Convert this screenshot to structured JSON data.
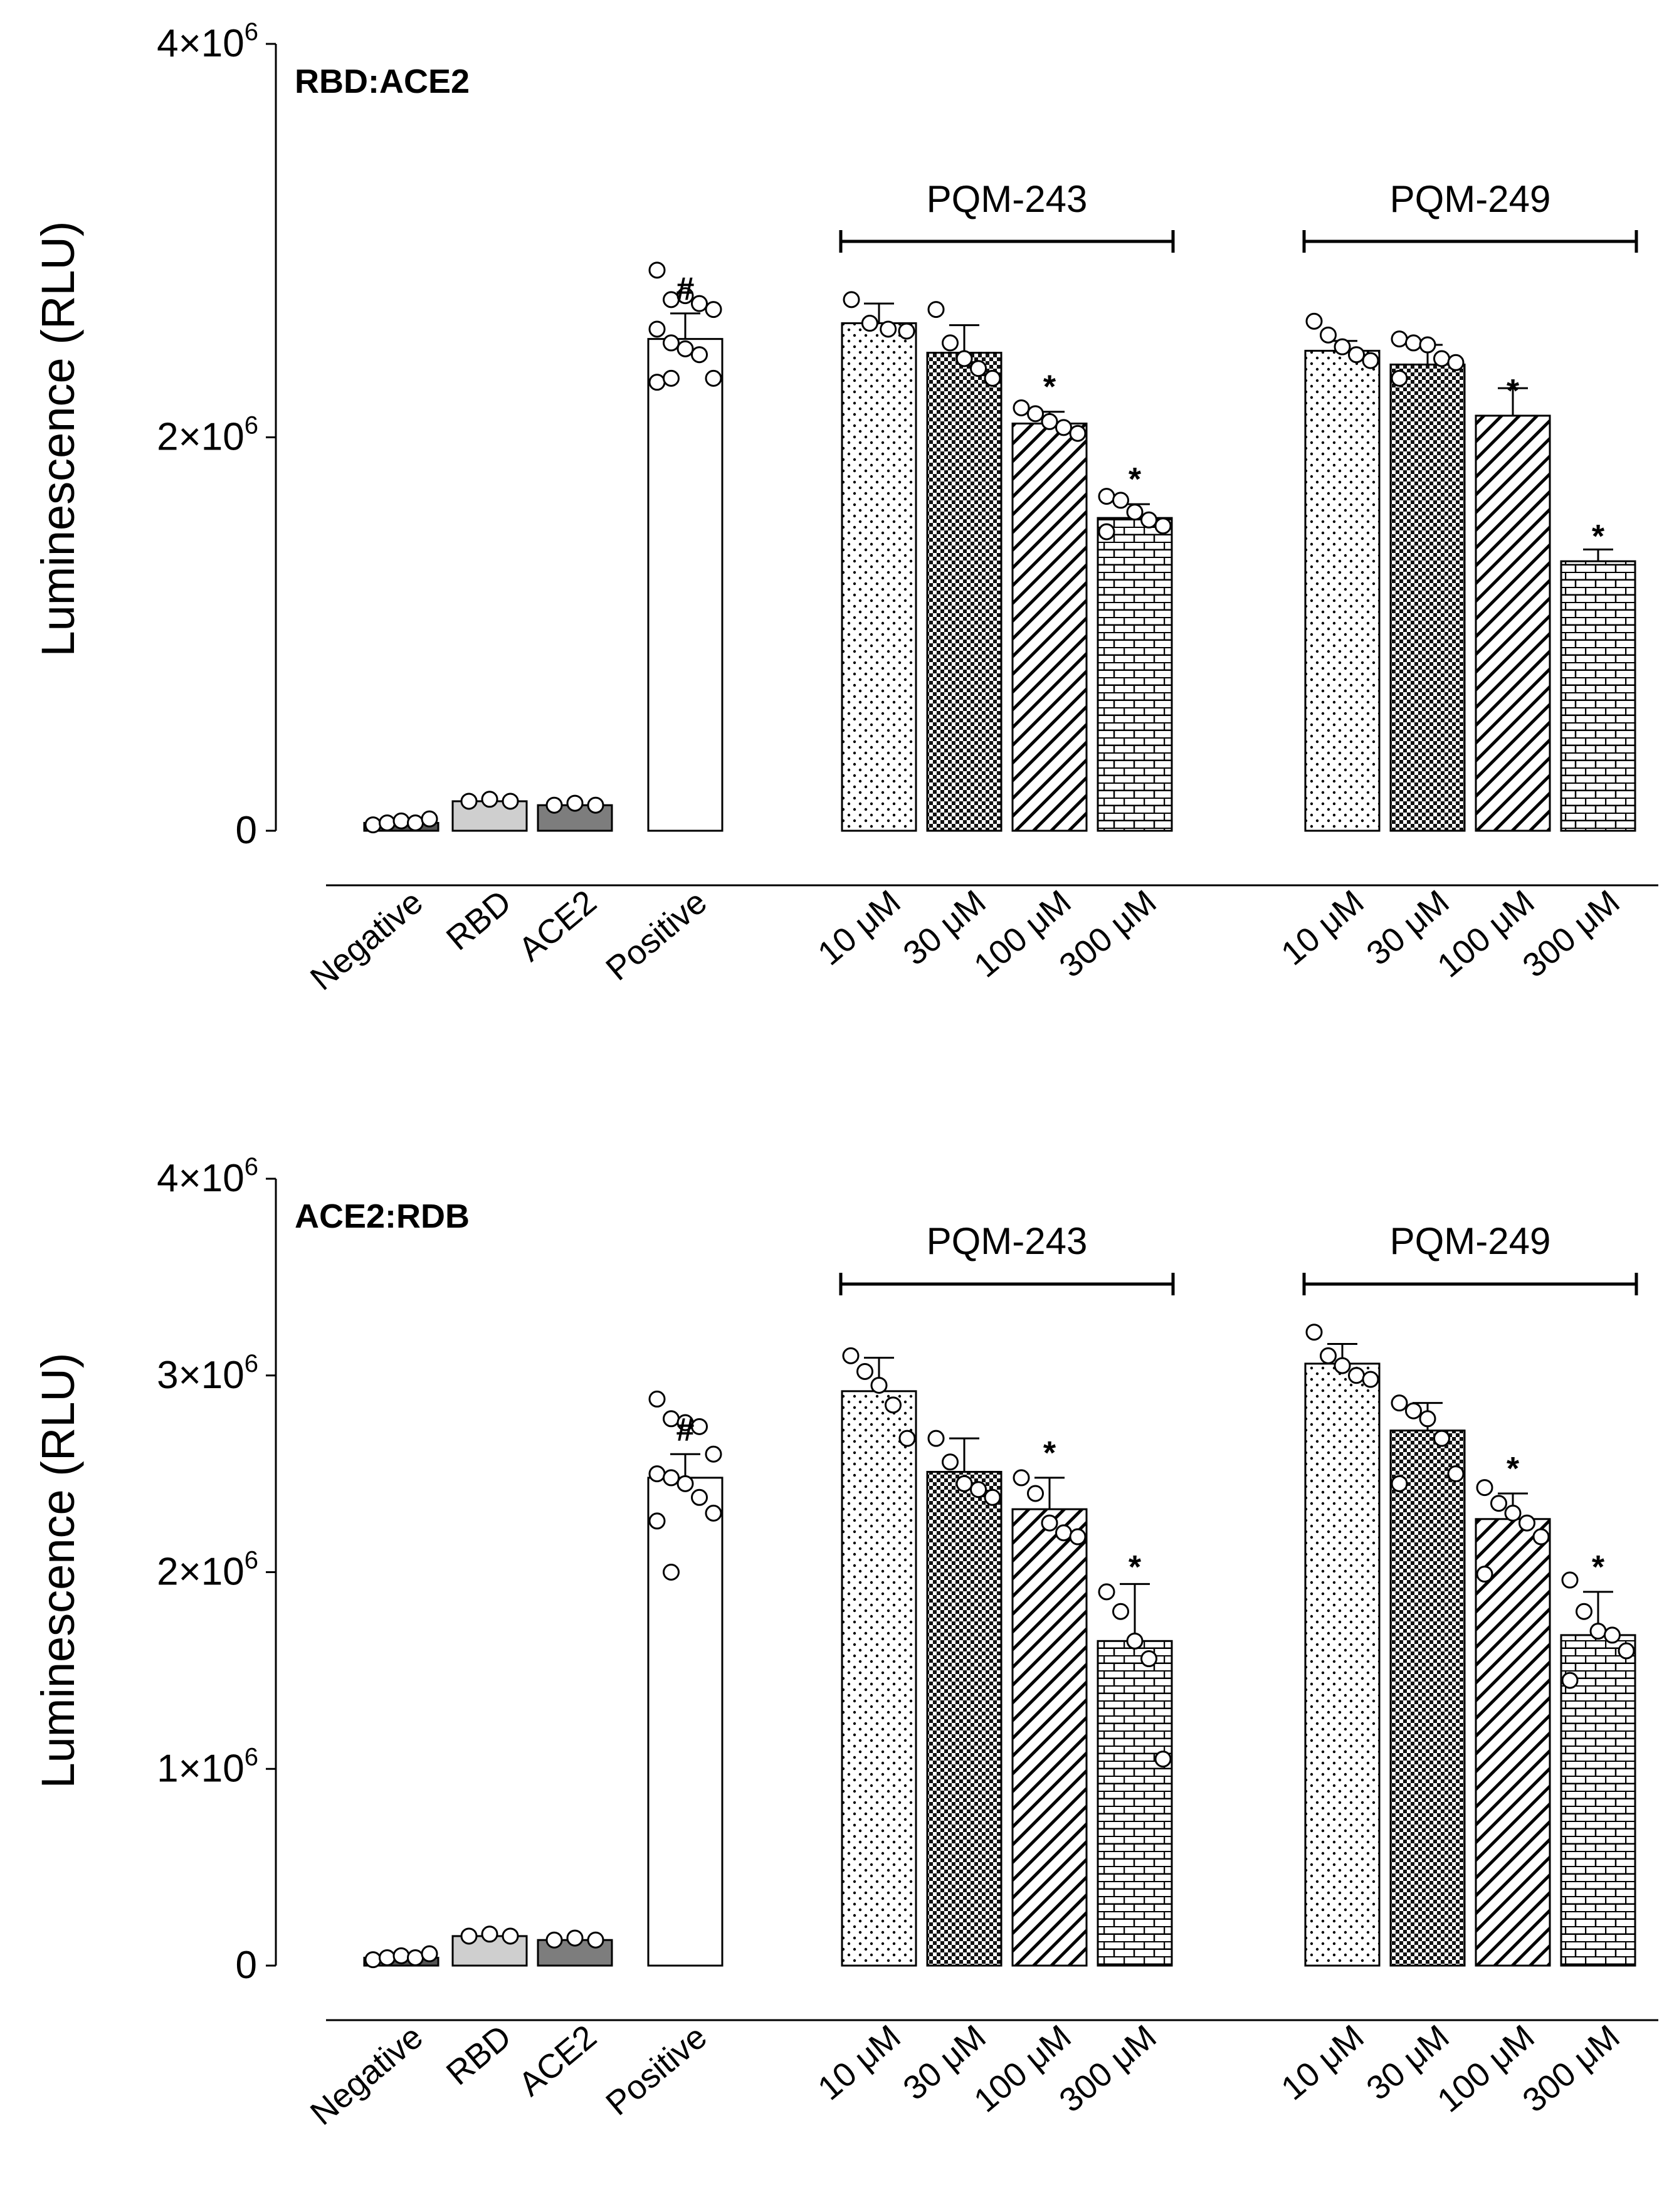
{
  "chart_data": [
    {
      "type": "bar",
      "title": "RBD:ACE2",
      "ylabel": "Luminescence (RLU)",
      "xlabel": "",
      "ylim": [
        0,
        4000000
      ],
      "yticks": [
        {
          "value": 0,
          "label": "0",
          "sup": ""
        },
        {
          "value": 2000000,
          "label": "2×10",
          "sup": "6"
        },
        {
          "value": 4000000,
          "label": "4×10",
          "sup": "6"
        }
      ],
      "groups": [
        {
          "label": "PQM-243",
          "first": 4,
          "last": 7
        },
        {
          "label": "PQM-249",
          "first": 8,
          "last": 11
        }
      ],
      "categories": [
        "Negative",
        "RBD",
        "ACE2",
        "Positive",
        "10 μM",
        "30 μM",
        "100 μM",
        "300 μM",
        "10 μM",
        "30 μM",
        "100 μM",
        "300 μM"
      ],
      "values": [
        40000,
        150000,
        130000,
        2500000,
        2580000,
        2430000,
        2070000,
        1590000,
        2440000,
        2370000,
        2110000,
        1370000
      ],
      "errors": [
        0,
        0,
        0,
        130000,
        100000,
        140000,
        60000,
        70000,
        50000,
        100000,
        140000,
        60000
      ],
      "patterns": [
        "dark",
        "light",
        "medium",
        "white",
        "dots",
        "check",
        "diag",
        "brick",
        "dots",
        "check",
        "diag",
        "brick"
      ],
      "marks": [
        "",
        "",
        "",
        "#",
        "",
        "",
        "*",
        "*",
        "",
        "",
        "*",
        "*"
      ],
      "points": [
        [
          30000,
          40000,
          50000,
          40000,
          60000
        ],
        [
          150000,
          160000,
          150000
        ],
        [
          130000,
          140000,
          130000
        ],
        [
          2850000,
          2700000,
          2720000,
          2680000,
          2650000,
          2550000,
          2480000,
          2450000,
          2420000,
          2300000,
          2280000,
          2300000
        ],
        [
          2700000,
          2580000,
          2550000,
          2540000
        ],
        [
          2650000,
          2480000,
          2400000,
          2350000,
          2300000
        ],
        [
          2150000,
          2120000,
          2080000,
          2050000,
          2020000
        ],
        [
          1700000,
          1680000,
          1620000,
          1580000,
          1550000,
          1520000
        ],
        [
          2590000,
          2520000,
          2460000,
          2420000,
          2390000
        ],
        [
          2500000,
          2480000,
          2470000,
          2400000,
          2380000,
          2300000
        ],
        [],
        []
      ]
    },
    {
      "type": "bar",
      "title": "ACE2:RDB",
      "ylabel": "Luminescence (RLU)",
      "xlabel": "",
      "ylim": [
        0,
        4000000
      ],
      "yticks": [
        {
          "value": 0,
          "label": "0",
          "sup": ""
        },
        {
          "value": 1000000,
          "label": "1×10",
          "sup": "6"
        },
        {
          "value": 2000000,
          "label": "2×10",
          "sup": "6"
        },
        {
          "value": 3000000,
          "label": "3×10",
          "sup": "6"
        },
        {
          "value": 4000000,
          "label": "4×10",
          "sup": "6"
        }
      ],
      "groups": [
        {
          "label": "PQM-243",
          "first": 4,
          "last": 7
        },
        {
          "label": "PQM-249",
          "first": 8,
          "last": 11
        }
      ],
      "categories": [
        "Negative",
        "RBD",
        "ACE2",
        "Positive",
        "10 μM",
        "30 μM",
        "100 μM",
        "300 μM",
        "10 μM",
        "30 μM",
        "100 μM",
        "300 μM"
      ],
      "values": [
        40000,
        150000,
        130000,
        2480000,
        2920000,
        2510000,
        2320000,
        1650000,
        3060000,
        2720000,
        2270000,
        1680000
      ],
      "errors": [
        0,
        0,
        0,
        120000,
        170000,
        170000,
        160000,
        290000,
        100000,
        140000,
        130000,
        220000
      ],
      "patterns": [
        "dark",
        "light",
        "medium",
        "white",
        "dots",
        "check",
        "diag",
        "brick",
        "dots",
        "check",
        "diag",
        "brick"
      ],
      "marks": [
        "",
        "",
        "",
        "#",
        "",
        "",
        "*",
        "*",
        "",
        "",
        "*",
        "*"
      ],
      "points": [
        [
          30000,
          40000,
          50000,
          40000,
          60000
        ],
        [
          150000,
          160000,
          150000
        ],
        [
          130000,
          140000,
          130000
        ],
        [
          2880000,
          2780000,
          2760000,
          2740000,
          2600000,
          2500000,
          2480000,
          2450000,
          2380000,
          2300000,
          2260000,
          2000000
        ],
        [
          3100000,
          3020000,
          2950000,
          2850000,
          2680000
        ],
        [
          2680000,
          2560000,
          2450000,
          2420000,
          2380000
        ],
        [
          2480000,
          2400000,
          2250000,
          2200000,
          2180000
        ],
        [
          1900000,
          1800000,
          1650000,
          1560000,
          1050000
        ],
        [
          3220000,
          3100000,
          3050000,
          3000000,
          2980000
        ],
        [
          2860000,
          2820000,
          2780000,
          2680000,
          2500000,
          2450000
        ],
        [
          2430000,
          2350000,
          2300000,
          2250000,
          2180000,
          1990000
        ],
        [
          1960000,
          1800000,
          1700000,
          1680000,
          1600000,
          1450000
        ]
      ]
    }
  ]
}
